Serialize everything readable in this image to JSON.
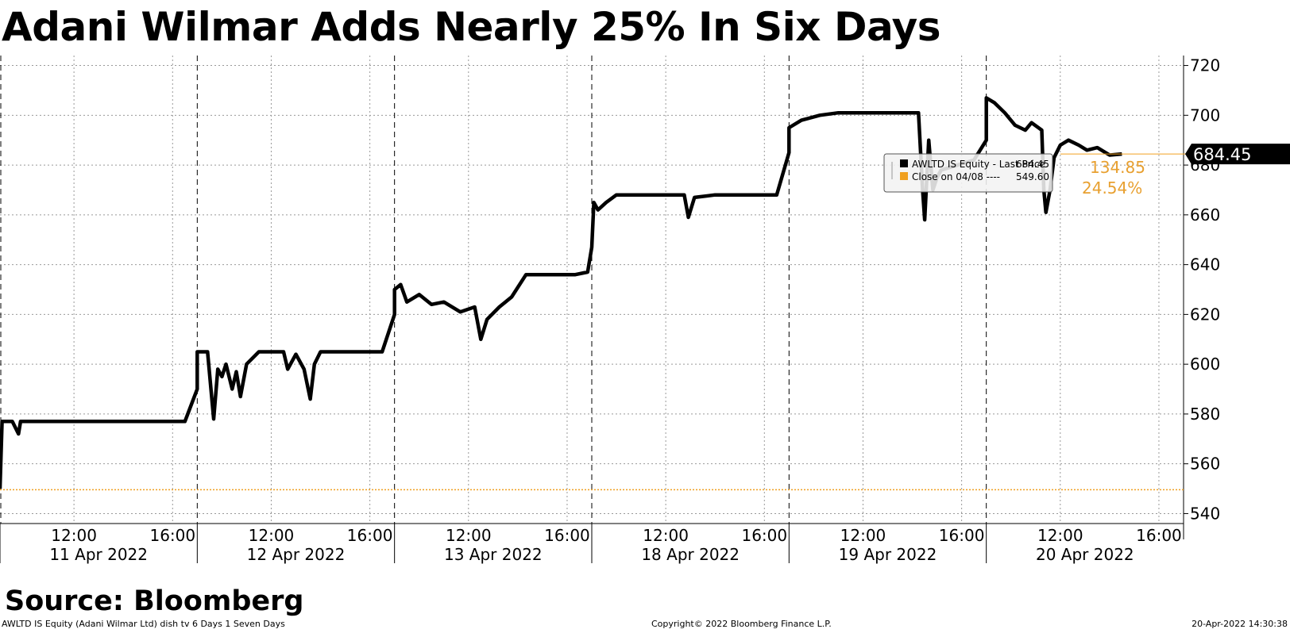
{
  "title": "Adani Wilmar Adds Nearly 25% In Six Days",
  "source": "Source: Bloomberg",
  "footer": {
    "left": "AWLTD IS Equity (Adani Wilmar Ltd) dish tv 6 Days 1 Seven Days",
    "center": "Copyright© 2022 Bloomberg Finance L.P.",
    "right": "20-Apr-2022 14:30:38"
  },
  "colors": {
    "line": "#000000",
    "reference": "#f0a020",
    "reference_text": "#e8a030",
    "grid": "#999999"
  },
  "chart_data": {
    "type": "line",
    "title": "Adani Wilmar Adds Nearly 25% In Six Days",
    "ylim": [
      536,
      724
    ],
    "yticks": [
      540,
      560,
      580,
      600,
      620,
      640,
      660,
      680,
      700,
      720
    ],
    "grid": true,
    "days": [
      "11 Apr 2022",
      "12 Apr 2022",
      "13 Apr 2022",
      "18 Apr 2022",
      "19 Apr 2022",
      "20 Apr 2022"
    ],
    "session_hours": [
      "09:00",
      "17:00"
    ],
    "xticks": [
      "12:00",
      "16:00"
    ],
    "series": [
      {
        "name": "AWLTD IS Equity - Last Price",
        "color": "#000000",
        "last_value": "684.45",
        "values": [
          [
            "11 Apr 2022 09:00",
            550
          ],
          [
            "11 Apr 2022 09:05",
            577
          ],
          [
            "11 Apr 2022 09:30",
            577
          ],
          [
            "11 Apr 2022 09:45",
            572
          ],
          [
            "11 Apr 2022 09:50",
            577
          ],
          [
            "11 Apr 2022 16:30",
            577
          ],
          [
            "11 Apr 2022 17:00",
            590
          ],
          [
            "12 Apr 2022 09:00",
            605
          ],
          [
            "12 Apr 2022 09:25",
            605
          ],
          [
            "12 Apr 2022 09:40",
            578
          ],
          [
            "12 Apr 2022 09:50",
            598
          ],
          [
            "12 Apr 2022 10:00",
            595
          ],
          [
            "12 Apr 2022 10:10",
            600
          ],
          [
            "12 Apr 2022 10:25",
            590
          ],
          [
            "12 Apr 2022 10:35",
            597
          ],
          [
            "12 Apr 2022 10:45",
            587
          ],
          [
            "12 Apr 2022 11:00",
            600
          ],
          [
            "12 Apr 2022 11:30",
            605
          ],
          [
            "12 Apr 2022 12:30",
            605
          ],
          [
            "12 Apr 2022 12:40",
            598
          ],
          [
            "12 Apr 2022 13:00",
            604
          ],
          [
            "12 Apr 2022 13:20",
            598
          ],
          [
            "12 Apr 2022 13:35",
            586
          ],
          [
            "12 Apr 2022 13:45",
            600
          ],
          [
            "12 Apr 2022 14:00",
            605
          ],
          [
            "12 Apr 2022 16:30",
            605
          ],
          [
            "12 Apr 2022 17:00",
            620
          ],
          [
            "13 Apr 2022 09:00",
            630
          ],
          [
            "13 Apr 2022 09:15",
            632
          ],
          [
            "13 Apr 2022 09:30",
            625
          ],
          [
            "13 Apr 2022 10:00",
            628
          ],
          [
            "13 Apr 2022 10:30",
            624
          ],
          [
            "13 Apr 2022 11:00",
            625
          ],
          [
            "13 Apr 2022 11:40",
            621
          ],
          [
            "13 Apr 2022 12:15",
            623
          ],
          [
            "13 Apr 2022 12:30",
            610
          ],
          [
            "13 Apr 2022 12:45",
            618
          ],
          [
            "13 Apr 2022 13:15",
            623
          ],
          [
            "13 Apr 2022 13:45",
            627
          ],
          [
            "13 Apr 2022 14:20",
            636
          ],
          [
            "13 Apr 2022 16:20",
            636
          ],
          [
            "13 Apr 2022 16:50",
            637
          ],
          [
            "13 Apr 2022 17:00",
            647
          ],
          [
            "18 Apr 2022 09:05",
            665
          ],
          [
            "18 Apr 2022 09:15",
            662
          ],
          [
            "18 Apr 2022 09:35",
            665
          ],
          [
            "18 Apr 2022 10:00",
            668
          ],
          [
            "18 Apr 2022 12:45",
            668
          ],
          [
            "18 Apr 2022 12:55",
            659
          ],
          [
            "18 Apr 2022 13:10",
            667
          ],
          [
            "18 Apr 2022 14:00",
            668
          ],
          [
            "18 Apr 2022 16:30",
            668
          ],
          [
            "18 Apr 2022 17:00",
            685
          ],
          [
            "19 Apr 2022 09:00",
            695
          ],
          [
            "19 Apr 2022 09:30",
            698
          ],
          [
            "19 Apr 2022 10:15",
            700
          ],
          [
            "19 Apr 2022 11:00",
            701
          ],
          [
            "19 Apr 2022 14:15",
            701
          ],
          [
            "19 Apr 2022 14:25",
            670
          ],
          [
            "19 Apr 2022 14:30",
            658
          ],
          [
            "19 Apr 2022 14:40",
            690
          ],
          [
            "19 Apr 2022 14:50",
            670
          ],
          [
            "19 Apr 2022 15:00",
            675
          ],
          [
            "19 Apr 2022 15:10",
            678
          ],
          [
            "19 Apr 2022 16:30",
            682
          ],
          [
            "19 Apr 2022 17:00",
            690
          ],
          [
            "20 Apr 2022 09:00",
            707
          ],
          [
            "20 Apr 2022 09:20",
            705
          ],
          [
            "20 Apr 2022 09:45",
            701
          ],
          [
            "20 Apr 2022 10:10",
            696
          ],
          [
            "20 Apr 2022 10:35",
            694
          ],
          [
            "20 Apr 2022 10:50",
            697
          ],
          [
            "20 Apr 2022 11:15",
            694
          ],
          [
            "20 Apr 2022 11:20",
            670
          ],
          [
            "20 Apr 2022 11:25",
            661
          ],
          [
            "20 Apr 2022 11:35",
            670
          ],
          [
            "20 Apr 2022 11:45",
            683
          ],
          [
            "20 Apr 2022 12:00",
            688
          ],
          [
            "20 Apr 2022 12:20",
            690
          ],
          [
            "20 Apr 2022 12:45",
            688
          ],
          [
            "20 Apr 2022 13:05",
            686
          ],
          [
            "20 Apr 2022 13:30",
            687
          ],
          [
            "20 Apr 2022 14:00",
            684
          ],
          [
            "20 Apr 2022 14:30",
            684.45
          ]
        ]
      },
      {
        "name": "Close on 04/08",
        "color": "#f0a020",
        "value": 549.6,
        "last_value": "549.60"
      }
    ],
    "legend": {
      "placement": "top-right",
      "entries": [
        {
          "label": "AWLTD IS Equity - Last Price",
          "value": "684.45",
          "color": "#000000"
        },
        {
          "label": "Close on 04/08 ----",
          "value": "549.60",
          "color": "#f0a020"
        }
      ]
    },
    "annotations": {
      "change_abs": "134.85",
      "change_pct": "24.54%",
      "last_price_tag": "684.45"
    }
  }
}
